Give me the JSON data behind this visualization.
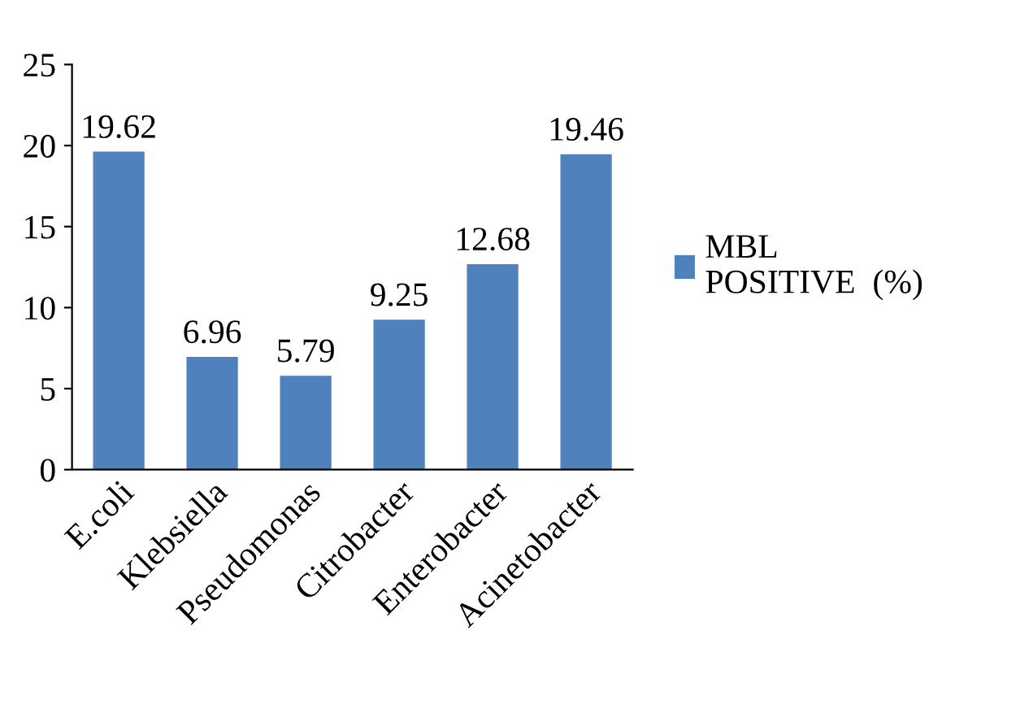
{
  "chart_data": {
    "type": "bar",
    "categories": [
      "E.coli",
      "Klebsiella",
      "Pseudomonas",
      "Citrobacter",
      "Enterobacter",
      "Acinetobacter"
    ],
    "series": [
      {
        "name": "MBL\nPOSITIVE  (%)",
        "color": "#4f81bd",
        "values": [
          19.62,
          6.96,
          5.79,
          9.25,
          12.68,
          19.46
        ]
      }
    ],
    "ylim": [
      0,
      25
    ],
    "yticks": [
      0,
      5,
      10,
      15,
      20,
      25
    ],
    "grid": false,
    "legend": "right",
    "data_labels": true
  }
}
